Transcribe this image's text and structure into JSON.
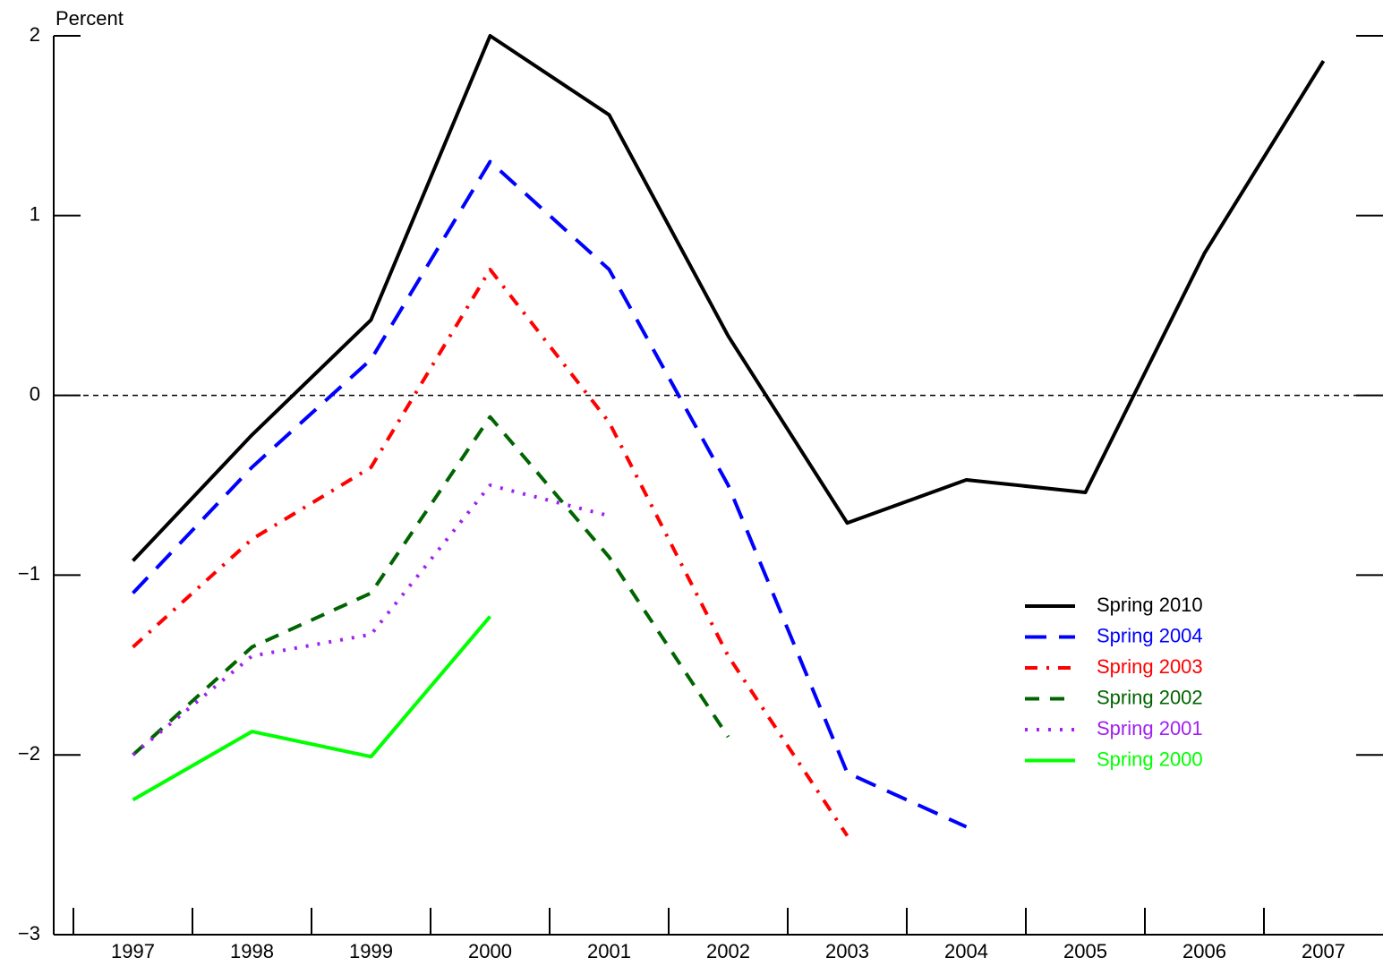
{
  "chart_data": {
    "type": "line",
    "y_label": "Percent",
    "categories": [
      "1997",
      "1998",
      "1999",
      "2000",
      "2001",
      "2002",
      "2003",
      "2004",
      "2005",
      "2006",
      "2007"
    ],
    "series": [
      {
        "name": "Spring 2010",
        "color": "#000000",
        "dash": "solid",
        "values": [
          -0.92,
          -0.22,
          0.42,
          2.0,
          1.56,
          0.33,
          -0.71,
          -0.47,
          -0.54,
          0.79,
          1.86
        ]
      },
      {
        "name": "Spring 2004",
        "color": "#0000ff",
        "dash": "long-dash",
        "values": [
          -1.1,
          -0.4,
          0.2,
          1.3,
          0.7,
          -0.5,
          -2.1,
          -2.4,
          null,
          null,
          null
        ]
      },
      {
        "name": "Spring 2003",
        "color": "#ff0000",
        "dash": "dash-dot",
        "values": [
          -1.4,
          -0.8,
          -0.4,
          0.7,
          -0.15,
          -1.45,
          -2.45,
          null,
          null,
          null,
          null
        ]
      },
      {
        "name": "Spring 2002",
        "color": "#006400",
        "dash": "dash",
        "values": [
          -2.0,
          -1.4,
          -1.1,
          -0.12,
          -0.9,
          -1.9,
          null,
          null,
          null,
          null,
          null
        ]
      },
      {
        "name": "Spring 2001",
        "color": "#a020f0",
        "dash": "dot",
        "values": [
          -2.0,
          -1.45,
          -1.33,
          -0.5,
          -0.67,
          null,
          null,
          null,
          null,
          null,
          null
        ]
      },
      {
        "name": "Spring 2000",
        "color": "#00ff00",
        "dash": "solid",
        "values": [
          -2.25,
          -1.87,
          -2.01,
          -1.23,
          null,
          null,
          null,
          null,
          null,
          null,
          null
        ]
      }
    ],
    "ylim": [
      -3,
      2
    ],
    "yticks": [
      {
        "value": -3,
        "label": "−3"
      },
      {
        "value": -2,
        "label": "−2"
      },
      {
        "value": -1,
        "label": "−1"
      },
      0,
      1,
      2
    ],
    "zero_line": true,
    "legend": "right"
  }
}
